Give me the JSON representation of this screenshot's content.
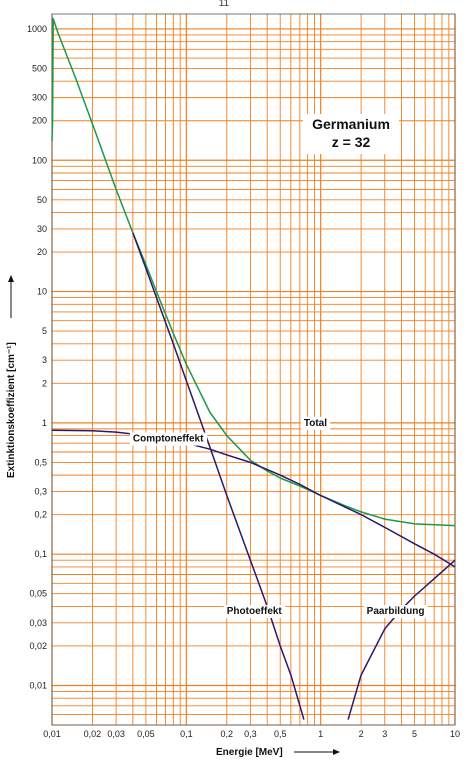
{
  "page_number": "11",
  "chart_data": {
    "type": "line",
    "title": "Germanium",
    "subtitle": "z = 32",
    "xlabel": "Energie [MeV]",
    "ylabel": "Extinktionskoeffizient [cm⁻¹]",
    "xscale": "log",
    "yscale": "log",
    "xlim": [
      0.01,
      10
    ],
    "ylim": [
      0.005,
      1300
    ],
    "grid": true,
    "colors": {
      "grid": "#f08020",
      "total": "#1a9a4a",
      "components": "#2a1870"
    },
    "x_ticks": [
      {
        "v": 0.01,
        "t": "0,01"
      },
      {
        "v": 0.02,
        "t": "0,02"
      },
      {
        "v": 0.03,
        "t": "0,03"
      },
      {
        "v": 0.05,
        "t": "0,05"
      },
      {
        "v": 0.1,
        "t": "0,1"
      },
      {
        "v": 0.2,
        "t": "0,2"
      },
      {
        "v": 0.3,
        "t": "0,3"
      },
      {
        "v": 0.5,
        "t": "0,5"
      },
      {
        "v": 1,
        "t": "1"
      },
      {
        "v": 2,
        "t": "2"
      },
      {
        "v": 3,
        "t": "3"
      },
      {
        "v": 5,
        "t": "5"
      },
      {
        "v": 10,
        "t": "10"
      }
    ],
    "y_ticks": [
      {
        "v": 1000,
        "t": "1000"
      },
      {
        "v": 500,
        "t": "500"
      },
      {
        "v": 300,
        "t": "300"
      },
      {
        "v": 200,
        "t": "200"
      },
      {
        "v": 100,
        "t": "100"
      },
      {
        "v": 50,
        "t": "50"
      },
      {
        "v": 30,
        "t": "30"
      },
      {
        "v": 20,
        "t": "20"
      },
      {
        "v": 10,
        "t": "10"
      },
      {
        "v": 5,
        "t": "5"
      },
      {
        "v": 3,
        "t": "3"
      },
      {
        "v": 2,
        "t": "2"
      },
      {
        "v": 1,
        "t": "1"
      },
      {
        "v": 0.5,
        "t": "0,5"
      },
      {
        "v": 0.3,
        "t": "0,3"
      },
      {
        "v": 0.2,
        "t": "0,2"
      },
      {
        "v": 0.1,
        "t": "0,1"
      },
      {
        "v": 0.05,
        "t": "0,05"
      },
      {
        "v": 0.03,
        "t": "0,03"
      },
      {
        "v": 0.02,
        "t": "0,02"
      },
      {
        "v": 0.01,
        "t": "0,01"
      }
    ],
    "series": [
      {
        "name": "Total",
        "color": "#1a9a4a",
        "points": [
          [
            0.01,
            140
          ],
          [
            0.0101,
            200
          ],
          [
            0.0102,
            1200
          ],
          [
            0.011,
            950
          ],
          [
            0.015,
            420
          ],
          [
            0.02,
            190
          ],
          [
            0.03,
            60
          ],
          [
            0.04,
            28
          ],
          [
            0.05,
            16
          ],
          [
            0.06,
            10
          ],
          [
            0.08,
            4.8
          ],
          [
            0.1,
            2.8
          ],
          [
            0.15,
            1.2
          ],
          [
            0.2,
            0.8
          ],
          [
            0.3,
            0.52
          ],
          [
            0.4,
            0.43
          ],
          [
            0.5,
            0.38
          ],
          [
            0.7,
            0.33
          ],
          [
            1,
            0.28
          ],
          [
            1.5,
            0.235
          ],
          [
            2,
            0.21
          ],
          [
            3,
            0.185
          ],
          [
            5,
            0.17
          ],
          [
            10,
            0.165
          ]
        ]
      },
      {
        "name": "Comptoneffekt",
        "color": "#2a1870",
        "points": [
          [
            0.01,
            0.88
          ],
          [
            0.02,
            0.87
          ],
          [
            0.03,
            0.85
          ],
          [
            0.05,
            0.8
          ],
          [
            0.08,
            0.74
          ],
          [
            0.1,
            0.7
          ],
          [
            0.15,
            0.63
          ],
          [
            0.2,
            0.57
          ],
          [
            0.3,
            0.5
          ],
          [
            0.5,
            0.4
          ],
          [
            0.7,
            0.34
          ],
          [
            1,
            0.28
          ],
          [
            1.5,
            0.23
          ],
          [
            2,
            0.2
          ],
          [
            3,
            0.16
          ],
          [
            5,
            0.12
          ],
          [
            7,
            0.1
          ],
          [
            10,
            0.08
          ]
        ]
      },
      {
        "name": "Photoeffekt",
        "color": "#2a1870",
        "points": [
          [
            0.04,
            28
          ],
          [
            0.05,
            15
          ],
          [
            0.06,
            9
          ],
          [
            0.08,
            4
          ],
          [
            0.1,
            2.1
          ],
          [
            0.15,
            0.65
          ],
          [
            0.2,
            0.28
          ],
          [
            0.3,
            0.09
          ],
          [
            0.4,
            0.04
          ],
          [
            0.5,
            0.02
          ],
          [
            0.6,
            0.012
          ],
          [
            0.7,
            0.007
          ],
          [
            0.75,
            0.0055
          ]
        ]
      },
      {
        "name": "Paarbildung",
        "color": "#2a1870",
        "points": [
          [
            1.6,
            0.0055
          ],
          [
            2,
            0.012
          ],
          [
            3,
            0.027
          ],
          [
            4,
            0.038
          ],
          [
            5,
            0.048
          ],
          [
            7,
            0.065
          ],
          [
            10,
            0.09
          ]
        ]
      }
    ],
    "annotations": [
      {
        "text": "Total",
        "x": 0.75,
        "y": 0.95
      },
      {
        "text": "Comptoneffekt",
        "x": 0.04,
        "y": 0.72
      },
      {
        "text": "Photoeffekt",
        "x": 0.2,
        "y": 0.035
      },
      {
        "text": "Paarbildung",
        "x": 2.2,
        "y": 0.035
      }
    ]
  }
}
